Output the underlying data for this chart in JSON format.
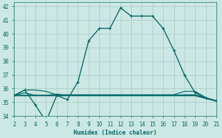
{
  "xlabel": "Humidex (Indice chaleur)",
  "xlim": [
    2,
    21
  ],
  "ylim": [
    34,
    42.3
  ],
  "yticks": [
    34,
    35,
    36,
    37,
    38,
    39,
    40,
    41,
    42
  ],
  "xticks": [
    2,
    3,
    4,
    5,
    6,
    7,
    8,
    9,
    10,
    11,
    12,
    13,
    14,
    15,
    16,
    17,
    18,
    19,
    20,
    21
  ],
  "bg_color": "#cce8e4",
  "grid_color": "#aaccc8",
  "line_color": "#006666",
  "lines": [
    {
      "x": [
        2,
        3,
        4,
        5,
        6,
        7,
        8,
        9,
        10,
        11,
        12,
        13,
        14,
        15,
        16,
        17,
        18,
        19,
        20,
        21
      ],
      "y": [
        35.5,
        35.9,
        34.8,
        33.6,
        35.5,
        35.2,
        36.5,
        39.5,
        40.4,
        40.4,
        41.9,
        41.3,
        41.3,
        41.3,
        40.4,
        38.8,
        37.0,
        35.7,
        35.3,
        35.1
      ],
      "marker": "+",
      "lw": 1.0
    },
    {
      "x": [
        2,
        3,
        4,
        5,
        6,
        7,
        8,
        9,
        10,
        11,
        12,
        13,
        14,
        15,
        16,
        17,
        18,
        19,
        20,
        21
      ],
      "y": [
        35.5,
        35.9,
        35.9,
        35.8,
        35.55,
        35.55,
        35.55,
        35.55,
        35.55,
        35.55,
        35.55,
        35.55,
        35.55,
        35.55,
        35.55,
        35.55,
        35.8,
        35.8,
        35.35,
        35.1
      ],
      "marker": null,
      "lw": 0.9
    },
    {
      "x": [
        2,
        3,
        4,
        5,
        6,
        7,
        8,
        9,
        10,
        11,
        12,
        13,
        14,
        15,
        16,
        17,
        18,
        19,
        20,
        21
      ],
      "y": [
        35.5,
        35.5,
        35.5,
        35.5,
        35.5,
        35.5,
        35.5,
        35.5,
        35.5,
        35.5,
        35.5,
        35.5,
        35.5,
        35.5,
        35.5,
        35.5,
        35.5,
        35.5,
        35.3,
        35.1
      ],
      "marker": null,
      "lw": 1.5
    },
    {
      "x": [
        2,
        3,
        4,
        5,
        6,
        7,
        8,
        9,
        10,
        11,
        12,
        13,
        14,
        15,
        16,
        17,
        18,
        19,
        20,
        21
      ],
      "y": [
        35.5,
        35.7,
        35.5,
        35.5,
        35.6,
        35.5,
        35.5,
        35.5,
        35.5,
        35.5,
        35.5,
        35.5,
        35.5,
        35.5,
        35.5,
        35.5,
        35.55,
        35.55,
        35.3,
        35.1
      ],
      "marker": null,
      "lw": 0.9
    }
  ]
}
